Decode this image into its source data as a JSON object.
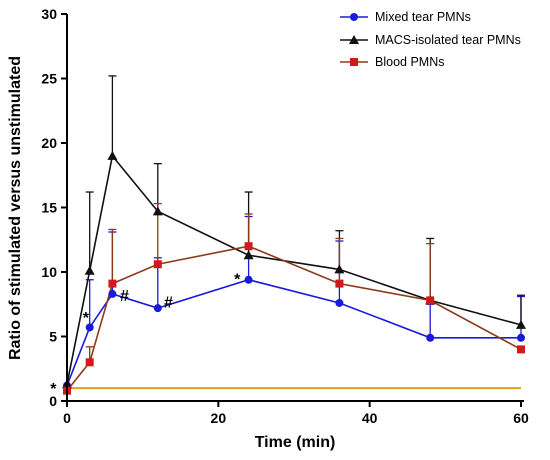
{
  "chart_data": {
    "type": "line",
    "xlabel": "Time (min)",
    "ylabel": "Ratio of stimulated versus unstimulated",
    "xlim": [
      0,
      60
    ],
    "ylim": [
      0,
      30
    ],
    "xticks": [
      0,
      20,
      40,
      60
    ],
    "yticks": [
      0,
      5,
      10,
      15,
      20,
      25,
      30
    ],
    "grid": false,
    "legend_position": "top-right",
    "baseline": {
      "y": 1,
      "color": "#e0a020"
    },
    "series": [
      {
        "name": "Mixed tear PMNs",
        "color": "#1a1adc",
        "marker": "circle",
        "x": [
          0,
          3,
          6,
          12,
          24,
          36,
          48,
          60
        ],
        "y": [
          1.2,
          5.7,
          8.3,
          7.2,
          9.4,
          7.6,
          4.9,
          4.9
        ],
        "err": [
          0,
          3.7,
          4.8,
          3.9,
          4.9,
          4.8,
          2.6,
          3.2
        ]
      },
      {
        "name": "MACS-isolated tear PMNs",
        "color": "#111111",
        "marker": "triangle",
        "x": [
          0,
          3,
          6,
          12,
          24,
          36,
          48,
          60
        ],
        "y": [
          1.3,
          10.1,
          19.0,
          14.7,
          11.3,
          10.2,
          7.8,
          5.9
        ],
        "err": [
          0,
          6.1,
          6.2,
          3.7,
          4.9,
          3.0,
          4.8,
          2.3
        ]
      },
      {
        "name": "Blood PMNs",
        "color": "#d21a1a",
        "line_color": "#8b3a1a",
        "marker": "square",
        "x": [
          0,
          3,
          6,
          12,
          24,
          36,
          48,
          60
        ],
        "y": [
          0.8,
          3.0,
          9.1,
          10.6,
          12.0,
          9.1,
          7.8,
          4.0
        ],
        "err": [
          0,
          1.2,
          4.2,
          4.7,
          2.5,
          3.5,
          4.4,
          0
        ]
      }
    ],
    "annotations": [
      {
        "text": "*",
        "x": -1.8,
        "y": 1.0
      },
      {
        "text": "*",
        "x": 2.5,
        "y": 6.5
      },
      {
        "text": "#",
        "x": 7.6,
        "y": 8.2
      },
      {
        "text": "#",
        "x": 13.4,
        "y": 7.7
      },
      {
        "text": "*",
        "x": 22.5,
        "y": 9.5
      }
    ]
  }
}
